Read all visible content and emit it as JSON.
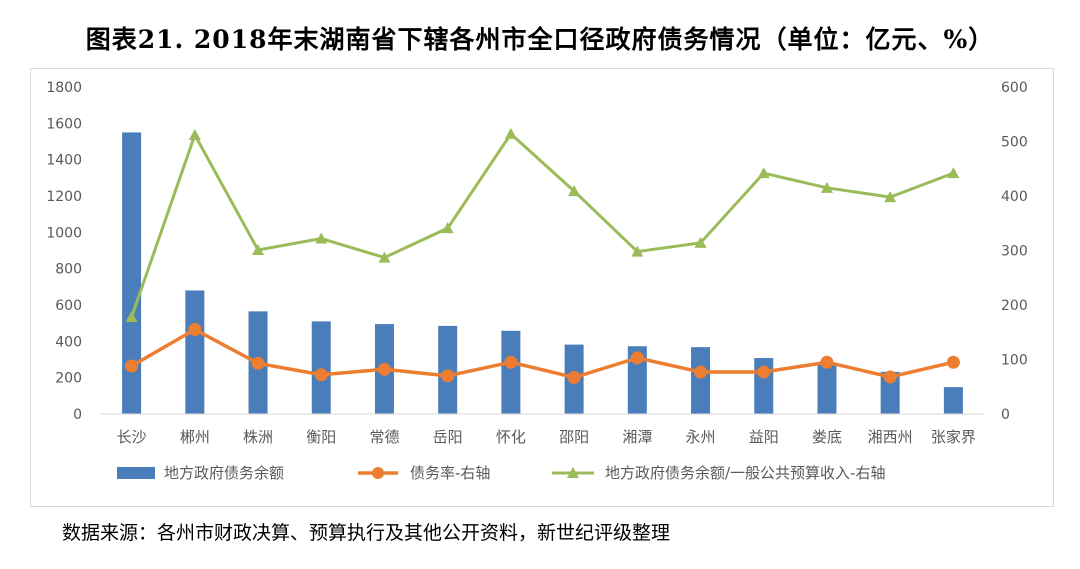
{
  "title": "图表21.   2018年末湖南省下辖各州市全口径政府债务情况（单位：亿元、%）",
  "source": "数据来源：各州市财政决算、预算执行及其他公开资料，新世纪评级整理",
  "colors": {
    "bar": "#4a7ebb",
    "debt_rate": "#ed7d31",
    "ratio": "#9bbb59",
    "axis": "#d9d9d9",
    "text": "#595959"
  },
  "chart_data": {
    "type": "bar",
    "title": "图表21.   2018年末湖南省下辖各州市全口径政府债务情况（单位：亿元、%）",
    "categories": [
      "长沙",
      "郴州",
      "株洲",
      "衡阳",
      "常德",
      "岳阳",
      "怀化",
      "邵阳",
      "湘潭",
      "永州",
      "益阳",
      "娄底",
      "湘西州",
      "张家界"
    ],
    "ylim_left": [
      0,
      1800
    ],
    "ylim_right": [
      0,
      600
    ],
    "left_ticks": [
      "0",
      "200",
      "400",
      "600",
      "800",
      "1000",
      "1200",
      "1400",
      "1600",
      "1800"
    ],
    "right_ticks": [
      "0",
      "100",
      "200",
      "300",
      "400",
      "500",
      "600"
    ],
    "grid": false,
    "legend_position": "bottom",
    "series": [
      {
        "name": "地方政府债务余额",
        "type": "bar",
        "axis": "left",
        "values": [
          1550,
          680,
          565,
          510,
          495,
          485,
          458,
          382,
          373,
          368,
          308,
          280,
          232,
          148
        ]
      },
      {
        "name": "债务率-右轴",
        "type": "line",
        "axis": "right",
        "values": [
          88,
          155,
          93,
          72,
          82,
          70,
          95,
          67,
          103,
          77,
          77,
          95,
          68,
          95
        ]
      },
      {
        "name": "地方政府债务余额/一般公共预算收入-右轴",
        "type": "line",
        "axis": "right",
        "values": [
          178,
          512,
          301,
          322,
          287,
          341,
          514,
          409,
          298,
          314,
          442,
          415,
          398,
          442
        ]
      }
    ]
  }
}
